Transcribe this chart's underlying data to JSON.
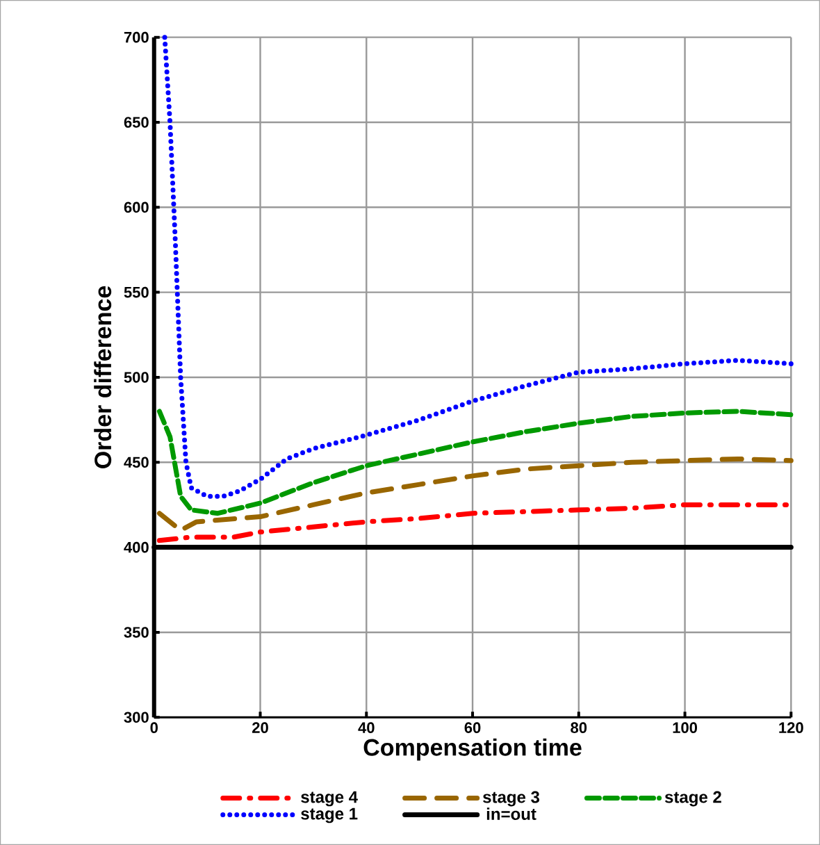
{
  "chart_data": {
    "type": "line",
    "xlabel": "Compensation time",
    "ylabel": "Order difference",
    "xlim": [
      0,
      120
    ],
    "ylim": [
      300,
      700
    ],
    "xticks": [
      0,
      20,
      40,
      60,
      80,
      100,
      120
    ],
    "yticks": [
      300,
      350,
      400,
      450,
      500,
      550,
      600,
      650,
      700
    ],
    "grid": true,
    "legend": "bottom",
    "series": [
      {
        "name": "stage 4",
        "color": "#ff0000",
        "line_style": "dashdot",
        "x": [
          1,
          7,
          15,
          20,
          30,
          40,
          50,
          60,
          70,
          80,
          90,
          100,
          110,
          120
        ],
        "values": [
          404,
          406,
          406,
          409,
          412,
          415,
          417,
          420,
          421,
          422,
          423,
          425,
          425,
          425
        ]
      },
      {
        "name": "stage 3",
        "color": "#996600",
        "line_style": "longdashed",
        "x": [
          1,
          5,
          8,
          20,
          30,
          40,
          50,
          60,
          70,
          80,
          90,
          100,
          110,
          120
        ],
        "values": [
          420,
          410,
          415,
          418,
          425,
          432,
          437,
          442,
          446,
          448,
          450,
          451,
          452,
          451
        ]
      },
      {
        "name": "stage 2",
        "color": "#009900",
        "line_style": "dashed",
        "x": [
          1,
          3,
          5,
          7,
          12,
          20,
          30,
          40,
          50,
          60,
          70,
          80,
          90,
          100,
          110,
          120
        ],
        "values": [
          480,
          465,
          430,
          422,
          420,
          426,
          438,
          448,
          455,
          462,
          468,
          473,
          477,
          479,
          480,
          478
        ]
      },
      {
        "name": "stage 1",
        "color": "#0000ff",
        "line_style": "dotted",
        "x": [
          2,
          3,
          4,
          5,
          6,
          7,
          10,
          13,
          16,
          20,
          25,
          30,
          35,
          40,
          50,
          60,
          70,
          80,
          90,
          100,
          110,
          120
        ],
        "values": [
          700,
          650,
          580,
          500,
          450,
          435,
          430,
          430,
          433,
          440,
          452,
          458,
          462,
          466,
          475,
          486,
          495,
          503,
          505,
          508,
          510,
          508
        ]
      },
      {
        "name": "in=out",
        "color": "#000000",
        "line_style": "solid",
        "x": [
          0,
          120
        ],
        "values": [
          400,
          400
        ]
      }
    ]
  }
}
